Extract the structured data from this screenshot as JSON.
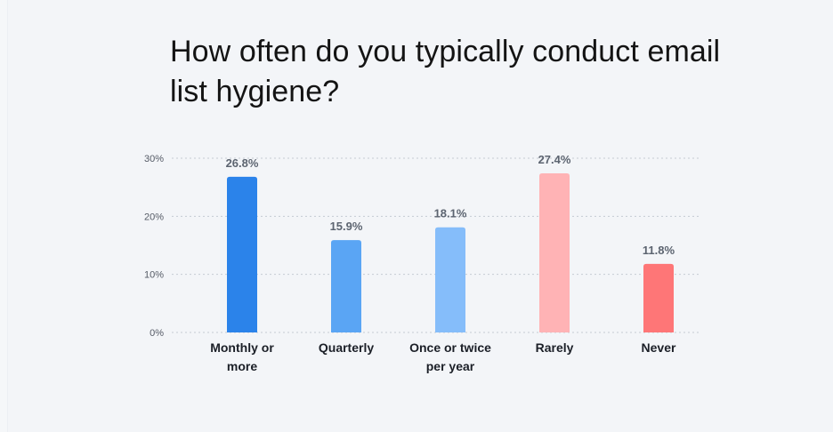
{
  "chart_data": {
    "type": "bar",
    "title": "How often do you typically conduct email list hygiene?",
    "xlabel": "",
    "ylabel": "",
    "categories": [
      "Monthly or more",
      "Quarterly",
      "Once or twice per year",
      "Rarely",
      "Never"
    ],
    "category_lines": [
      [
        "Monthly or",
        "more"
      ],
      [
        "Quarterly"
      ],
      [
        "Once or twice",
        "per year"
      ],
      [
        "Rarely"
      ],
      [
        "Never"
      ]
    ],
    "values": [
      26.8,
      15.9,
      18.1,
      27.4,
      11.8
    ],
    "data_labels": [
      "26.8%",
      "15.9%",
      "18.1%",
      "27.4%",
      "11.8%"
    ],
    "bar_colors": [
      "#2b83ea",
      "#5aa5f4",
      "#85bdfa",
      "#ffb3b5",
      "#fe7677"
    ],
    "ylim": [
      0,
      30
    ],
    "yticks": [
      0,
      10,
      20,
      30
    ],
    "ytick_labels": [
      "0%",
      "10%",
      "20%",
      "30%"
    ],
    "grid": "dotted horizontal",
    "legend": "none"
  }
}
